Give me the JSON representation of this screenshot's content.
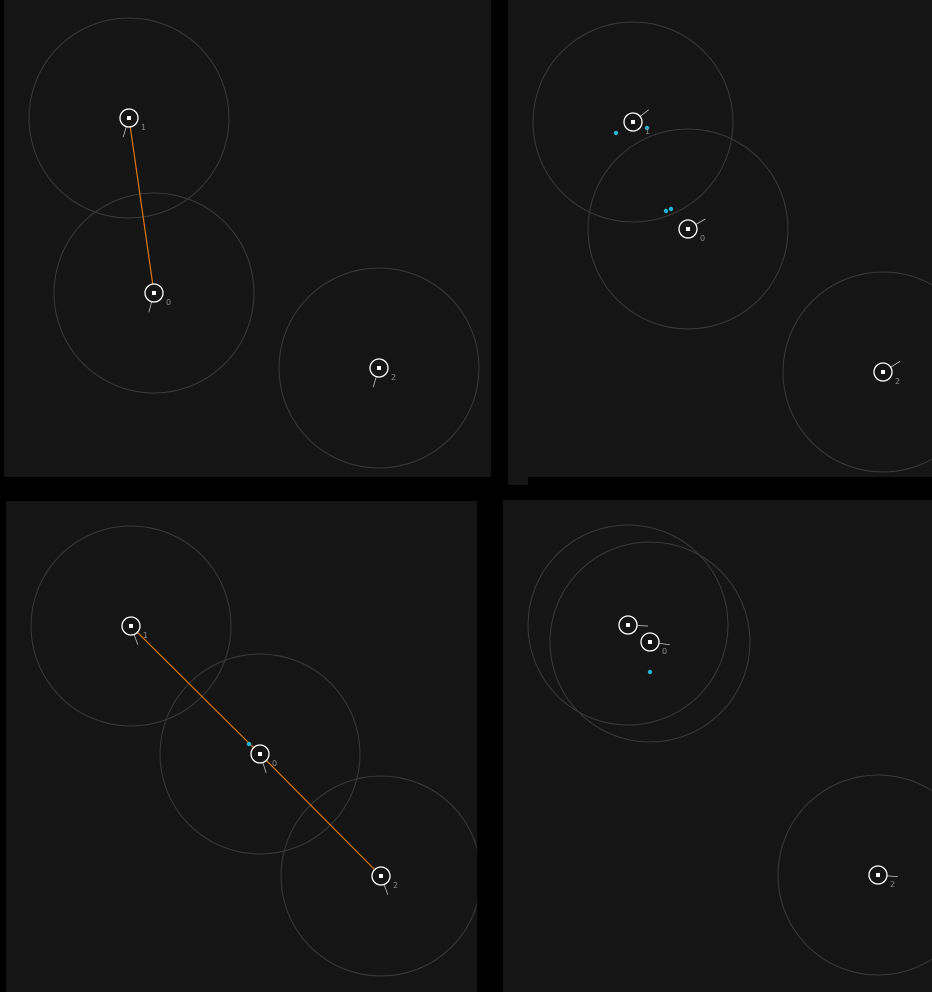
{
  "colors": {
    "background": "#000000",
    "panel": "#151515",
    "range_circle": "#3a3a3a",
    "node": "#ffffff",
    "link": "#d9770f",
    "signal_dot": "#1fb6d6",
    "label": "#8a8a8a"
  },
  "icon_names": [
    "node-marker-icon",
    "heading-tick-icon",
    "signal-dot-icon"
  ],
  "panels": [
    {
      "nodes": [
        {
          "id": "1",
          "label": "1",
          "heading_deg": 253
        },
        {
          "id": "0",
          "label": "0",
          "heading_deg": 255
        },
        {
          "id": "2",
          "label": "2",
          "heading_deg": 253
        }
      ],
      "links": [
        [
          "1",
          "0"
        ]
      ]
    },
    {
      "nodes": [
        {
          "id": "1",
          "label": "1",
          "heading_deg": 38
        },
        {
          "id": "0",
          "label": "0",
          "heading_deg": 30
        },
        {
          "id": "2",
          "label": "2",
          "heading_deg": 32
        }
      ],
      "links": []
    },
    {
      "nodes": [
        {
          "id": "1",
          "label": "1",
          "heading_deg": -70
        },
        {
          "id": "0",
          "label": "0",
          "heading_deg": -72
        },
        {
          "id": "2",
          "label": "2",
          "heading_deg": -70
        }
      ],
      "links": [
        [
          "1",
          "0"
        ],
        [
          "0",
          "2"
        ]
      ]
    },
    {
      "nodes": [
        {
          "id": "1",
          "label": "",
          "heading_deg": -3
        },
        {
          "id": "0",
          "label": "0",
          "heading_deg": -8
        },
        {
          "id": "2",
          "label": "2",
          "heading_deg": -5
        }
      ],
      "links": []
    }
  ]
}
